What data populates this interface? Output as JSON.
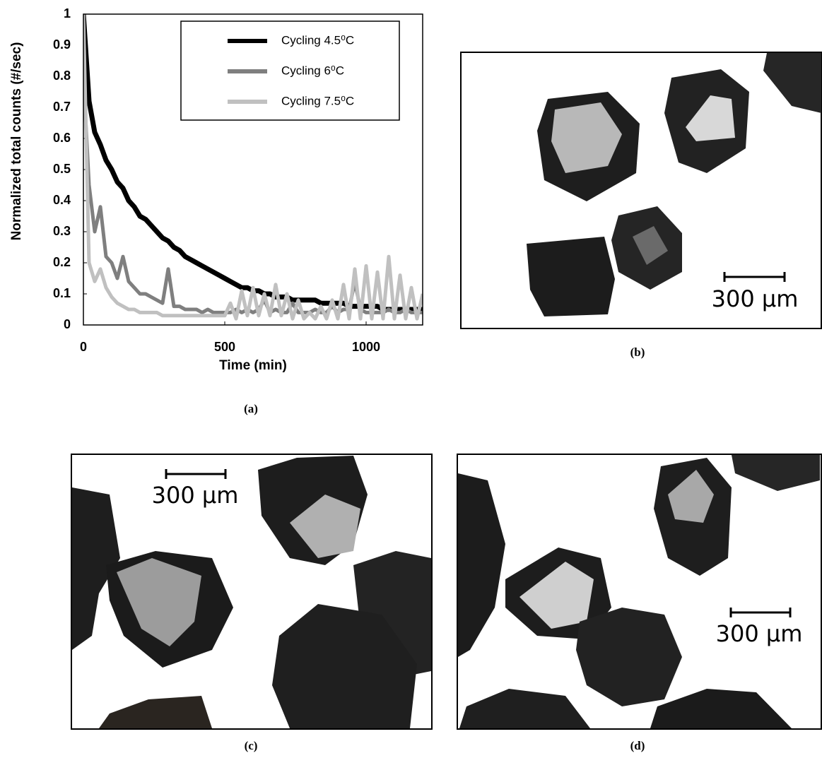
{
  "chart_data": {
    "type": "line",
    "xlabel": "Time (min)",
    "ylabel": "Normalized total counts (#/sec)",
    "xlim": [
      0,
      1200
    ],
    "ylim": [
      0,
      1
    ],
    "xticks": [
      0,
      500,
      1000
    ],
    "yticks": [
      0,
      0.1,
      0.2,
      0.3,
      0.4,
      0.5,
      0.6,
      0.7,
      0.8,
      0.9,
      1
    ],
    "legend": "upper right",
    "x": [
      0,
      20,
      40,
      60,
      80,
      100,
      120,
      140,
      160,
      180,
      200,
      220,
      240,
      260,
      280,
      300,
      320,
      340,
      360,
      380,
      400,
      420,
      440,
      460,
      480,
      500,
      520,
      540,
      560,
      580,
      600,
      620,
      640,
      660,
      680,
      700,
      720,
      740,
      760,
      780,
      800,
      820,
      840,
      860,
      880,
      900,
      920,
      940,
      960,
      980,
      1000,
      1020,
      1040,
      1060,
      1080,
      1100,
      1120,
      1140,
      1160,
      1180,
      1200
    ],
    "series": [
      {
        "name": "Cycling 4.5⁰C",
        "color": "#000000",
        "values": [
          1.0,
          0.72,
          0.62,
          0.58,
          0.53,
          0.5,
          0.46,
          0.44,
          0.4,
          0.38,
          0.35,
          0.34,
          0.32,
          0.3,
          0.28,
          0.27,
          0.25,
          0.24,
          0.22,
          0.21,
          0.2,
          0.19,
          0.18,
          0.17,
          0.16,
          0.15,
          0.14,
          0.13,
          0.12,
          0.12,
          0.11,
          0.11,
          0.1,
          0.1,
          0.09,
          0.09,
          0.09,
          0.08,
          0.08,
          0.08,
          0.08,
          0.08,
          0.07,
          0.07,
          0.07,
          0.07,
          0.07,
          0.06,
          0.06,
          0.06,
          0.06,
          0.06,
          0.06,
          0.05,
          0.05,
          0.05,
          0.05,
          0.05,
          0.05,
          0.05,
          0.05
        ]
      },
      {
        "name": "Cycling 6⁰C",
        "color": "#7f7f7f",
        "values": [
          0.8,
          0.45,
          0.3,
          0.38,
          0.22,
          0.2,
          0.15,
          0.22,
          0.14,
          0.12,
          0.1,
          0.1,
          0.09,
          0.08,
          0.07,
          0.18,
          0.06,
          0.06,
          0.05,
          0.05,
          0.05,
          0.04,
          0.05,
          0.04,
          0.04,
          0.04,
          0.04,
          0.05,
          0.04,
          0.05,
          0.04,
          0.05,
          0.08,
          0.04,
          0.05,
          0.04,
          0.04,
          0.07,
          0.04,
          0.04,
          0.04,
          0.05,
          0.04,
          0.04,
          0.06,
          0.04,
          0.05,
          0.05,
          0.14,
          0.05,
          0.04,
          0.04,
          0.04,
          0.04,
          0.05,
          0.04,
          0.04,
          0.05,
          0.04,
          0.04,
          0.04
        ]
      },
      {
        "name": "Cycling 7.5⁰C",
        "color": "#c0c0c0",
        "values": [
          1.0,
          0.2,
          0.14,
          0.18,
          0.12,
          0.09,
          0.07,
          0.06,
          0.05,
          0.05,
          0.04,
          0.04,
          0.04,
          0.04,
          0.03,
          0.03,
          0.03,
          0.03,
          0.03,
          0.03,
          0.03,
          0.03,
          0.03,
          0.03,
          0.03,
          0.03,
          0.07,
          0.02,
          0.11,
          0.03,
          0.12,
          0.03,
          0.1,
          0.03,
          0.13,
          0.03,
          0.1,
          0.02,
          0.08,
          0.02,
          0.04,
          0.02,
          0.06,
          0.02,
          0.08,
          0.02,
          0.13,
          0.02,
          0.18,
          0.02,
          0.19,
          0.02,
          0.17,
          0.02,
          0.22,
          0.02,
          0.16,
          0.02,
          0.12,
          0.02,
          0.1
        ]
      }
    ]
  },
  "captions": [
    "(a)",
    "(b)",
    "(c)",
    "(d)"
  ],
  "scale_bars": [
    "300 µm",
    "300 µm",
    "300 µm"
  ]
}
